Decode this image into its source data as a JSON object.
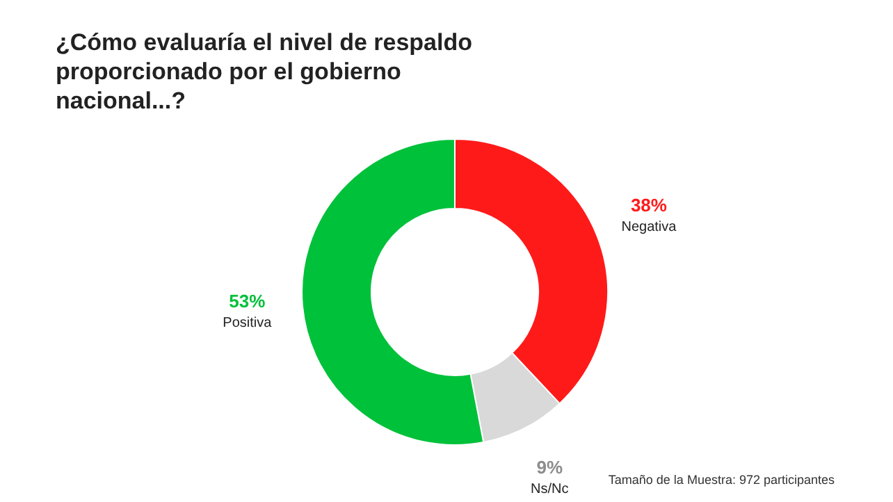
{
  "chart_data": {
    "type": "donut",
    "title": "¿Cómo evaluaría el nivel de respaldo proporcionado por el gobierno nacional...?",
    "categories": [
      "Negativa",
      "Ns/Nc",
      "Positiva"
    ],
    "values": [
      38,
      9,
      53
    ],
    "colors": [
      "#ff1a1a",
      "#d9d9d9",
      "#00c13a"
    ],
    "value_labels": [
      "38%",
      "9%",
      "53%"
    ],
    "annotations": [
      "Tamaño de la Muestra: 972 participantes"
    ],
    "legend": false
  }
}
